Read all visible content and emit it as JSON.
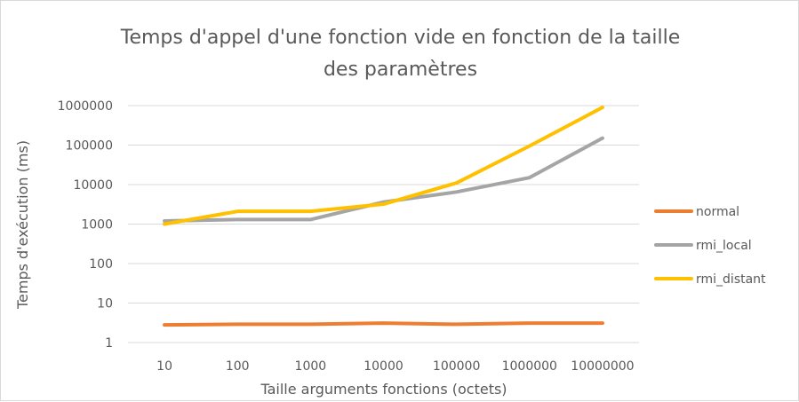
{
  "chart_data": {
    "type": "line",
    "title_lines": [
      "Temps d'appel d'une fonction vide en fonction de la taille",
      "des paramètres"
    ],
    "xlabel": "Taille arguments fonctions (octets)",
    "ylabel": "Temps d'exécution (ms)",
    "y_scale": "log",
    "ylim": [
      1,
      1000000
    ],
    "categories": [
      "10",
      "100",
      "1000",
      "10000",
      "100000",
      "1000000",
      "10000000"
    ],
    "y_ticks": [
      "1",
      "10",
      "100",
      "1000",
      "10000",
      "100000",
      "1000000"
    ],
    "grid": "horizontal",
    "legend_position": "right",
    "series": [
      {
        "name": "normal",
        "color": "#ED7D31",
        "values": [
          2.8,
          2.9,
          2.9,
          3.1,
          2.9,
          3.1,
          3.1
        ]
      },
      {
        "name": "rmi_local",
        "color": "#A5A5A5",
        "values": [
          1200,
          1300,
          1300,
          3600,
          6500,
          15000,
          150000
        ]
      },
      {
        "name": "rmi_distant",
        "color": "#FFC000",
        "values": [
          1000,
          2100,
          2100,
          3200,
          11000,
          95000,
          900000
        ]
      }
    ]
  }
}
